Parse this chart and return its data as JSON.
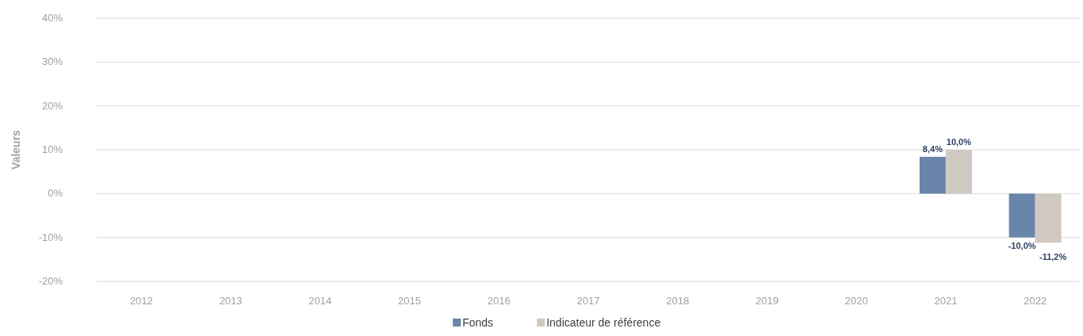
{
  "chart_data": {
    "type": "bar",
    "ylabel": "Valeurs",
    "categories": [
      "2012",
      "2013",
      "2014",
      "2015",
      "2016",
      "2017",
      "2018",
      "2019",
      "2020",
      "2021",
      "2022"
    ],
    "series": [
      {
        "name": "Fonds",
        "color": "#6985a9",
        "values": [
          null,
          null,
          null,
          null,
          null,
          null,
          null,
          null,
          null,
          8.4,
          -10.0
        ],
        "value_labels": [
          null,
          null,
          null,
          null,
          null,
          null,
          null,
          null,
          null,
          "8,4%",
          "-10,0%"
        ]
      },
      {
        "name": "Indicateur de référence",
        "color": "#d0c9c1",
        "values": [
          null,
          null,
          null,
          null,
          null,
          null,
          null,
          null,
          null,
          10.0,
          -11.2
        ],
        "value_labels": [
          null,
          null,
          null,
          null,
          null,
          null,
          null,
          null,
          null,
          "10,0%",
          "-11,2%"
        ]
      }
    ],
    "ylim": [
      -20,
      40
    ],
    "yticks": [
      {
        "value": -20,
        "label": "-20%"
      },
      {
        "value": -10,
        "label": "-10%"
      },
      {
        "value": 0,
        "label": "0%"
      },
      {
        "value": 10,
        "label": "10%"
      },
      {
        "value": 20,
        "label": "20%"
      },
      {
        "value": 30,
        "label": "30%"
      },
      {
        "value": 40,
        "label": "40%"
      }
    ],
    "grid": "y",
    "legend": "bottom"
  }
}
